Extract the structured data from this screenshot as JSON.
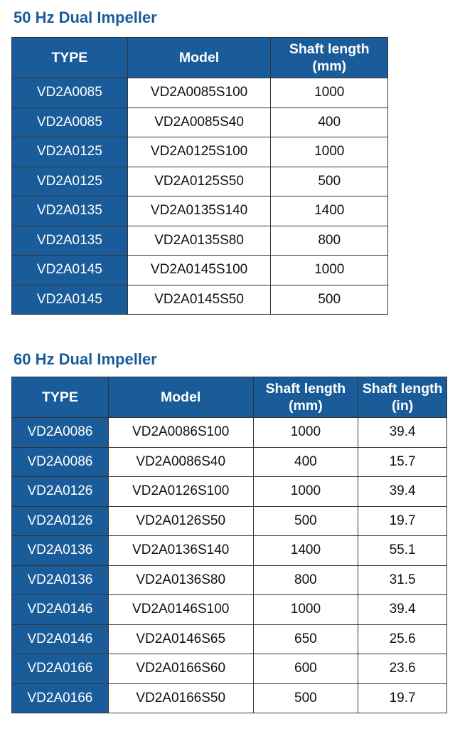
{
  "colors": {
    "header_bg": "#1a5c99",
    "title": "#1a5c99"
  },
  "table50": {
    "title": "50 Hz Dual Impeller",
    "headers": [
      "TYPE",
      "Model",
      "Shaft length (mm)"
    ],
    "rows": [
      [
        "VD2A0085",
        "VD2A0085S100",
        "1000"
      ],
      [
        "VD2A0085",
        "VD2A0085S40",
        "400"
      ],
      [
        "VD2A0125",
        "VD2A0125S100",
        "1000"
      ],
      [
        "VD2A0125",
        "VD2A0125S50",
        "500"
      ],
      [
        "VD2A0135",
        "VD2A0135S140",
        "1400"
      ],
      [
        "VD2A0135",
        "VD2A0135S80",
        "800"
      ],
      [
        "VD2A0145",
        "VD2A0145S100",
        "1000"
      ],
      [
        "VD2A0145",
        "VD2A0145S50",
        "500"
      ]
    ]
  },
  "table60": {
    "title": "60 Hz Dual Impeller",
    "headers": [
      "TYPE",
      "Model",
      "Shaft length (mm)",
      "Shaft length (in)"
    ],
    "rows": [
      [
        "VD2A0086",
        "VD2A0086S100",
        "1000",
        "39.4"
      ],
      [
        "VD2A0086",
        "VD2A0086S40",
        "400",
        "15.7"
      ],
      [
        "VD2A0126",
        "VD2A0126S100",
        "1000",
        "39.4"
      ],
      [
        "VD2A0126",
        "VD2A0126S50",
        "500",
        "19.7"
      ],
      [
        "VD2A0136",
        "VD2A0136S140",
        "1400",
        "55.1"
      ],
      [
        "VD2A0136",
        "VD2A0136S80",
        "800",
        "31.5"
      ],
      [
        "VD2A0146",
        "VD2A0146S100",
        "1000",
        "39.4"
      ],
      [
        "VD2A0146",
        "VD2A0146S65",
        "650",
        "25.6"
      ],
      [
        "VD2A0166",
        "VD2A0166S60",
        "600",
        "23.6"
      ],
      [
        "VD2A0166",
        "VD2A0166S50",
        "500",
        "19.7"
      ]
    ]
  }
}
